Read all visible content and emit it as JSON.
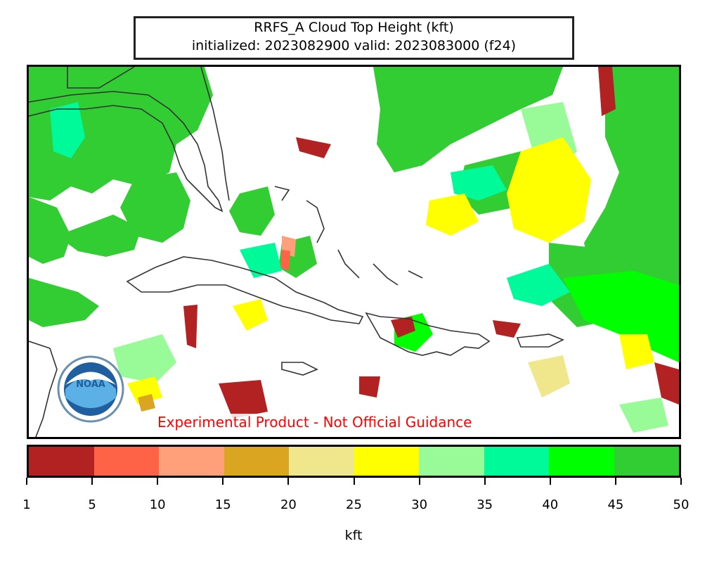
{
  "title": {
    "line1": "RRFS_A Cloud Top Height (kft)",
    "line2": "initialized: 2023082900 valid: 2023083000 (f24)"
  },
  "disclaimer": "Experimental Product - Not Official Guidance",
  "logo": {
    "text": "NOAA",
    "name": "noaa-logo"
  },
  "colorbar": {
    "label": "kft",
    "ticks": [
      "1",
      "5",
      "10",
      "15",
      "20",
      "25",
      "30",
      "35",
      "40",
      "45",
      "50"
    ],
    "colors": [
      "#b22222",
      "#ff6347",
      "#ffa07a",
      "#daa520",
      "#f0e68c",
      "#ffff00",
      "#98fb98",
      "#00fa9a",
      "#00ff00",
      "#32cd32"
    ]
  }
}
